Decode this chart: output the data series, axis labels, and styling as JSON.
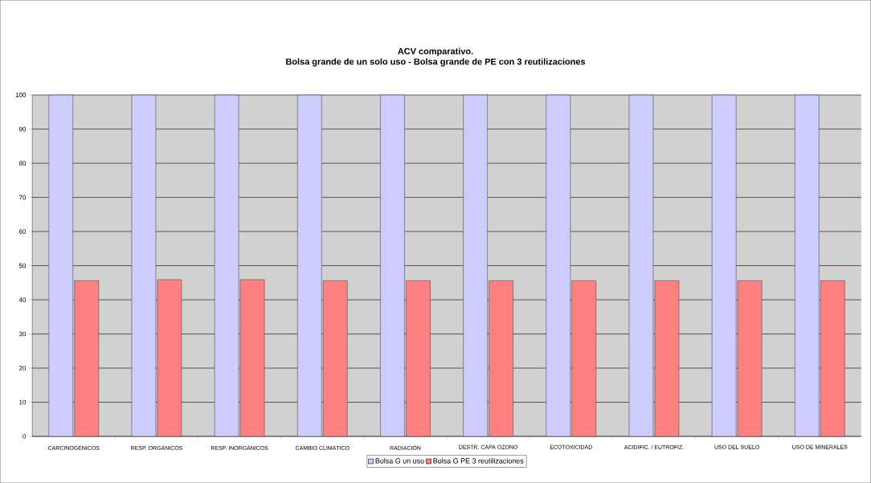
{
  "chart_data": {
    "type": "bar",
    "title": "ACV comparativo.",
    "subtitle": "Bolsa grande de un solo uso - Bolsa grande de PE con 3 reutilizaciones",
    "categories": [
      "CARCINOGÉNICOS",
      "RESP. ORGÁNICOS",
      "RESP. INORGÁNICOS",
      "CAMBIO CLIMÁTICO",
      "RADIACIÓN",
      "DESTR. CAPA OZONO",
      "ECOTOXICIDAD",
      "ACIDIFIC. / EUTROFIZ.",
      "USO DEL SUELO",
      "USO DE MINERALES"
    ],
    "series": [
      {
        "name": "Bolsa G un uso",
        "color": "#ccccff",
        "values": [
          100,
          100,
          100,
          100,
          100,
          100,
          100,
          100,
          100,
          100
        ]
      },
      {
        "name": "Bolsa G PE 3 reutilizaciones",
        "color": "#ff8080",
        "values": [
          45.6,
          45.9,
          45.9,
          45.6,
          45.6,
          45.6,
          45.6,
          45.6,
          45.6,
          45.6
        ]
      }
    ],
    "ylim": [
      0,
      100
    ],
    "yticks": [
      0,
      10,
      20,
      30,
      40,
      50,
      60,
      70,
      80,
      90,
      100
    ],
    "grid": "y",
    "legend": "bottom"
  }
}
